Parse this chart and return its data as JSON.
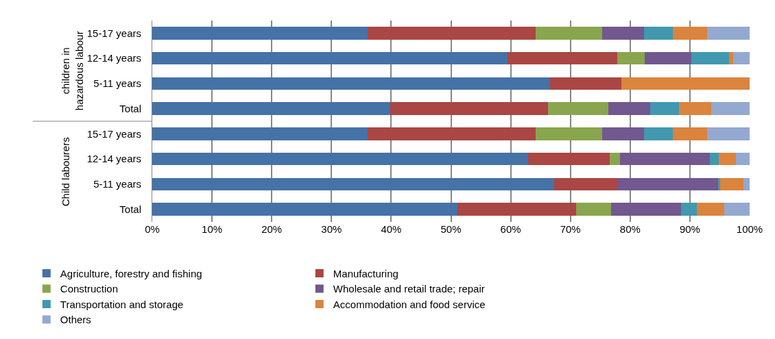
{
  "chart_data": {
    "type": "bar",
    "orientation": "horizontal",
    "stacked": true,
    "categories": [
      "15-17 years",
      "12-14 years",
      "5-11 years",
      "Total",
      "15-17 years",
      "12-14 years",
      "5-11 years",
      "Total"
    ],
    "annotations": [
      "children in\nhazardous labour",
      "Child labourers"
    ],
    "series": [
      {
        "name": "Agriculture, forestry and fishing",
        "color": "#4572a7",
        "values": [
          36.1,
          59.5,
          66.6,
          39.8,
          36.1,
          62.9,
          67.3,
          51.1
        ]
      },
      {
        "name": "Manufacturing",
        "color": "#aa4643",
        "values": [
          28.1,
          18.3,
          11.9,
          26.5,
          28.1,
          13.7,
          10.5,
          19.9
        ]
      },
      {
        "name": "Construction",
        "color": "#89a54e",
        "values": [
          11.1,
          4.6,
          0,
          10.0,
          11.1,
          1.7,
          0,
          5.8
        ]
      },
      {
        "name": "Wholesale and retail trade; repair",
        "color": "#71588f",
        "values": [
          7.0,
          7.8,
          0,
          7.0,
          7.0,
          15.0,
          16.9,
          11.7
        ]
      },
      {
        "name": "Transportation and storage",
        "color": "#4198af",
        "values": [
          4.8,
          6.4,
          0,
          4.9,
          4.8,
          1.5,
          0.4,
          2.7
        ]
      },
      {
        "name": "Accommodation and food service",
        "color": "#db843d",
        "values": [
          5.8,
          0.7,
          21.5,
          5.4,
          5.8,
          2.9,
          3.9,
          4.5
        ]
      },
      {
        "name": "Others",
        "color": "#93a9cf",
        "values": [
          7.1,
          2.7,
          0,
          6.4,
          7.1,
          2.3,
          1.0,
          4.3
        ]
      }
    ],
    "xlim": [
      0,
      100
    ],
    "xticks": [
      {
        "value": 0,
        "label": "0%"
      },
      {
        "value": 10,
        "label": "10%"
      },
      {
        "value": 20,
        "label": "20%"
      },
      {
        "value": 30,
        "label": "30%"
      },
      {
        "value": 40,
        "label": "40%"
      },
      {
        "value": 50,
        "label": "50%"
      },
      {
        "value": 60,
        "label": "60%"
      },
      {
        "value": 70,
        "label": "70%"
      },
      {
        "value": 80,
        "label": "80%"
      },
      {
        "value": 90,
        "label": "90%"
      },
      {
        "value": 100,
        "label": "100%"
      }
    ],
    "grid": "x",
    "legend": "bottom"
  }
}
